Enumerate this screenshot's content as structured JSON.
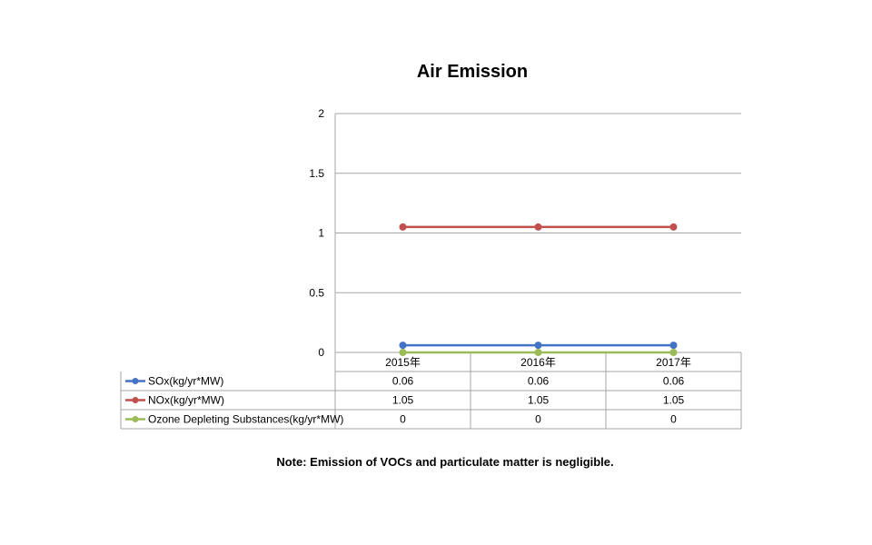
{
  "chart_data": {
    "type": "line",
    "title": "Air Emission",
    "categories": [
      "2015年",
      "2016年",
      "2017年"
    ],
    "series": [
      {
        "name": "SOx(kg/yr*MW)",
        "values": [
          0.06,
          0.06,
          0.06
        ],
        "color": "#4472c4",
        "display": [
          "0.06",
          "0.06",
          "0.06"
        ]
      },
      {
        "name": "NOx(kg/yr*MW)",
        "values": [
          1.05,
          1.05,
          1.05
        ],
        "color": "#c0504d",
        "display": [
          "1.05",
          "1.05",
          "1.05"
        ]
      },
      {
        "name": "Ozone Depleting Substances(kg/yr*MW)",
        "values": [
          0,
          0,
          0
        ],
        "color": "#9bbb59",
        "display": [
          "0",
          "0",
          "0"
        ]
      }
    ],
    "ylim": [
      0,
      2
    ],
    "yticks": [
      "0",
      "0.5",
      "1",
      "1.5",
      "2"
    ],
    "grid": true,
    "legend": "data-table"
  },
  "note": "Note: Emission of VOCs and particulate matter is negligible."
}
